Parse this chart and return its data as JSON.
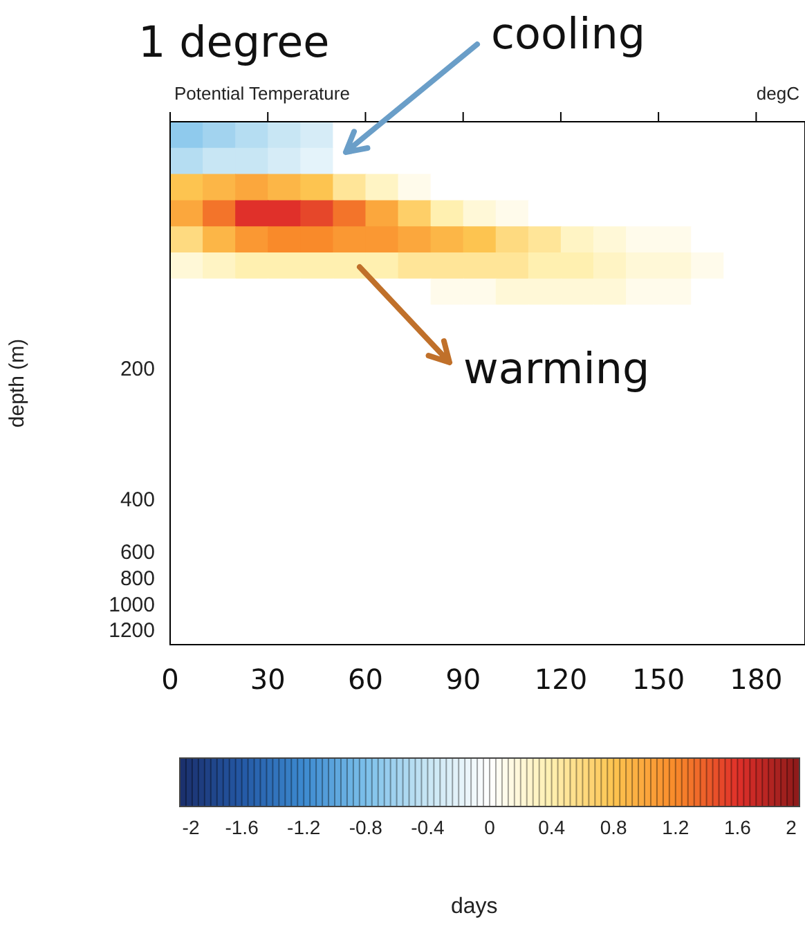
{
  "chart_data": {
    "type": "heatmap",
    "title": "Potential Temperature",
    "clabel": "degC",
    "ylabel": "depth (m)",
    "x": [
      5,
      15,
      25,
      35,
      45,
      55,
      65,
      75,
      85,
      95,
      105,
      115,
      125,
      135,
      145,
      155,
      165,
      175,
      185
    ],
    "xlim": [
      0,
      195
    ],
    "xticks": [
      0,
      30,
      60,
      90,
      120,
      150,
      180
    ],
    "y_categories": [
      null,
      null,
      null,
      null,
      null,
      null,
      null,
      null,
      null,
      "200",
      null,
      null,
      null,
      null,
      "400",
      null,
      "600",
      "800",
      "1000",
      "1200"
    ],
    "cells": [
      [
        -0.7,
        -0.6,
        -0.5,
        -0.4,
        -0.3,
        0,
        0,
        0,
        0,
        0,
        0,
        0,
        0,
        0,
        0,
        0,
        0,
        0,
        0
      ],
      [
        -0.5,
        -0.4,
        -0.4,
        -0.3,
        -0.2,
        0,
        0,
        0,
        0,
        0,
        0,
        0,
        0,
        0,
        0,
        0,
        0,
        0,
        0
      ],
      [
        0.8,
        0.9,
        1.0,
        0.9,
        0.8,
        0.5,
        0.3,
        0.1,
        0,
        0,
        0,
        0,
        0,
        0,
        0,
        0,
        0,
        0,
        0
      ],
      [
        1.0,
        1.3,
        1.6,
        1.6,
        1.5,
        1.3,
        1.0,
        0.7,
        0.4,
        0.2,
        0.1,
        0,
        0,
        0,
        0,
        0,
        0,
        0,
        0
      ],
      [
        0.6,
        0.9,
        1.1,
        1.2,
        1.2,
        1.1,
        1.1,
        1.0,
        0.9,
        0.8,
        0.6,
        0.5,
        0.3,
        0.2,
        0.1,
        0.1,
        0,
        0,
        0
      ],
      [
        0.2,
        0.3,
        0.4,
        0.4,
        0.4,
        0.4,
        0.4,
        0.5,
        0.5,
        0.5,
        0.5,
        0.4,
        0.4,
        0.3,
        0.2,
        0.2,
        0.1,
        0,
        0
      ],
      [
        0,
        0,
        0,
        0,
        0,
        0,
        0,
        0,
        0.1,
        0.1,
        0.2,
        0.2,
        0.2,
        0.2,
        0.1,
        0.1,
        0,
        0,
        0
      ],
      [
        0,
        0,
        0,
        0,
        0,
        0,
        0,
        0,
        0,
        0,
        0,
        0,
        0,
        0,
        0,
        0,
        0,
        0,
        0
      ],
      [
        0,
        0,
        0,
        0,
        0,
        0,
        0,
        0,
        0,
        0,
        0,
        0,
        0,
        0,
        0,
        0,
        0,
        0,
        0
      ],
      [
        0,
        0,
        0,
        0,
        0,
        0,
        0,
        0,
        0,
        0,
        0,
        0,
        0,
        0,
        0,
        0,
        0,
        0,
        0
      ],
      [
        0,
        0,
        0,
        0,
        0,
        0,
        0,
        0,
        0,
        0,
        0,
        0,
        0,
        0,
        0,
        0,
        0,
        0,
        0
      ],
      [
        0,
        0,
        0,
        0,
        0,
        0,
        0,
        0,
        0,
        0,
        0,
        0,
        0,
        0,
        0,
        0,
        0,
        0,
        0
      ],
      [
        0,
        0,
        0,
        0,
        0,
        0,
        0,
        0,
        0,
        0,
        0,
        0,
        0,
        0,
        0,
        0,
        0,
        0,
        0
      ],
      [
        0,
        0,
        0,
        0,
        0,
        0,
        0,
        0,
        0,
        0,
        0,
        0,
        0,
        0,
        0,
        0,
        0,
        0,
        0
      ],
      [
        0,
        0,
        0,
        0,
        0,
        0,
        0,
        0,
        0,
        0,
        0,
        0,
        0,
        0,
        0,
        0,
        0,
        0,
        0
      ],
      [
        0,
        0,
        0,
        0,
        0,
        0,
        0,
        0,
        0,
        0,
        0,
        0,
        0,
        0,
        0,
        0,
        0,
        0,
        0
      ],
      [
        0,
        0,
        0,
        0,
        0,
        0,
        0,
        0,
        0,
        0,
        0,
        0,
        0,
        0,
        0,
        0,
        0,
        0,
        0
      ],
      [
        0,
        0,
        0,
        0,
        0,
        0,
        0,
        0,
        0,
        0,
        0,
        0,
        0,
        0,
        0,
        0,
        0,
        0,
        0
      ],
      [
        0,
        0,
        0,
        0,
        0,
        0,
        0,
        0,
        0,
        0,
        0,
        0,
        0,
        0,
        0,
        0,
        0,
        0,
        0
      ],
      [
        0,
        0,
        0,
        0,
        0,
        0,
        0,
        0,
        0,
        0,
        0,
        0,
        0,
        0,
        0,
        0,
        0,
        0,
        0
      ]
    ],
    "clim": [
      -2,
      2
    ],
    "cticks": [
      -2,
      -1.6,
      -1.2,
      -0.8,
      -0.4,
      0,
      0.4,
      0.8,
      1.2,
      1.6,
      2
    ],
    "annotations": [
      "1 degree",
      "cooling",
      "warming",
      "days"
    ]
  }
}
